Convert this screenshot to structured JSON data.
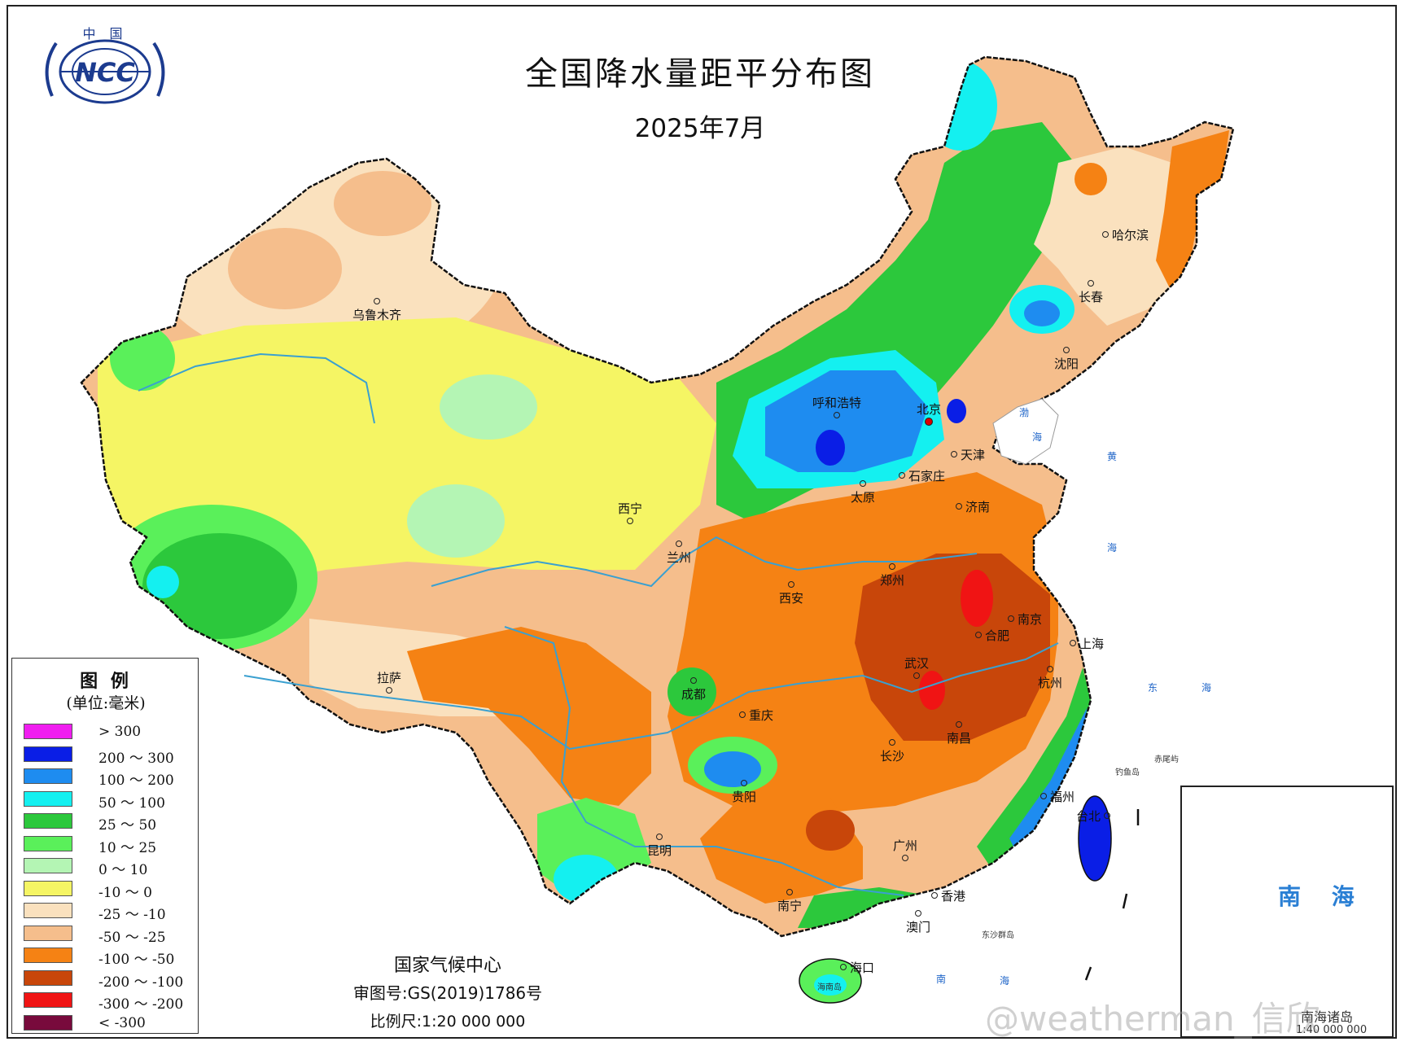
{
  "title": "全国降水量距平分布图",
  "subtitle": "2025年7月",
  "logo": {
    "top_text": "中 国",
    "mark": "NCC"
  },
  "legend": {
    "title": "图 例",
    "unit": "(单位:毫米)",
    "items": [
      {
        "label": "> 300",
        "color": "#f01ef0"
      },
      {
        "label": "200 ～ 300",
        "color": "#0a1ee6"
      },
      {
        "label": "100 ～ 200",
        "color": "#1e8cf0"
      },
      {
        "label": "50 ～ 100",
        "color": "#14f0f0"
      },
      {
        "label": "25 ～ 50",
        "color": "#2cc83c"
      },
      {
        "label": "10 ～ 25",
        "color": "#5af05a"
      },
      {
        "label": "0 ～ 10",
        "color": "#b4f5b4"
      },
      {
        "label": "-10 ～ 0",
        "color": "#f5f564"
      },
      {
        "label": "-25 ～ -10",
        "color": "#fae1be"
      },
      {
        "label": "-50 ～ -25",
        "color": "#f5be8c"
      },
      {
        "label": "-100 ～ -50",
        "color": "#f58214"
      },
      {
        "label": "-200 ～ -100",
        "color": "#c8460a"
      },
      {
        "label": "-300 ～ -200",
        "color": "#f01414"
      },
      {
        "label": "< -300",
        "color": "#780a3c"
      }
    ]
  },
  "cities": [
    {
      "name": "乌鲁木齐"
    },
    {
      "name": "呼和浩特"
    },
    {
      "name": "北京"
    },
    {
      "name": "天津"
    },
    {
      "name": "太原"
    },
    {
      "name": "石家庄"
    },
    {
      "name": "济南"
    },
    {
      "name": "郑州"
    },
    {
      "name": "西宁"
    },
    {
      "name": "兰州"
    },
    {
      "name": "西安"
    },
    {
      "name": "拉萨"
    },
    {
      "name": "成都"
    },
    {
      "name": "重庆"
    },
    {
      "name": "武汉"
    },
    {
      "name": "合肥"
    },
    {
      "name": "南京"
    },
    {
      "name": "上海"
    },
    {
      "name": "杭州"
    },
    {
      "name": "南昌"
    },
    {
      "name": "长沙"
    },
    {
      "name": "贵阳"
    },
    {
      "name": "昆明"
    },
    {
      "name": "福州"
    },
    {
      "name": "台北"
    },
    {
      "name": "广州"
    },
    {
      "name": "南宁"
    },
    {
      "name": "澳门"
    },
    {
      "name": "香港"
    },
    {
      "name": "海口"
    },
    {
      "name": "哈尔滨"
    },
    {
      "name": "长春"
    },
    {
      "name": "沈阳"
    }
  ],
  "seas": {
    "bohai": "渤",
    "bohai2": "海",
    "huanghai": "黄",
    "huanghai2": "海",
    "donghai": "东",
    "donghai2": "海",
    "nanhai": "南",
    "nanhai2": "海",
    "diaoyu": "钓鱼岛",
    "chiwei": "赤尾屿",
    "dongsha": "东沙群岛",
    "hainan": "海南岛"
  },
  "footer": {
    "agency": "国家气候中心",
    "review_no": "审图号:GS(2019)1786号",
    "scale": "比例尺:1:20 000 000"
  },
  "inset": {
    "label": "南 海",
    "caption": "南海诸岛",
    "scale": "1:40 000 000"
  },
  "watermark": "@weatherman_信欣"
}
